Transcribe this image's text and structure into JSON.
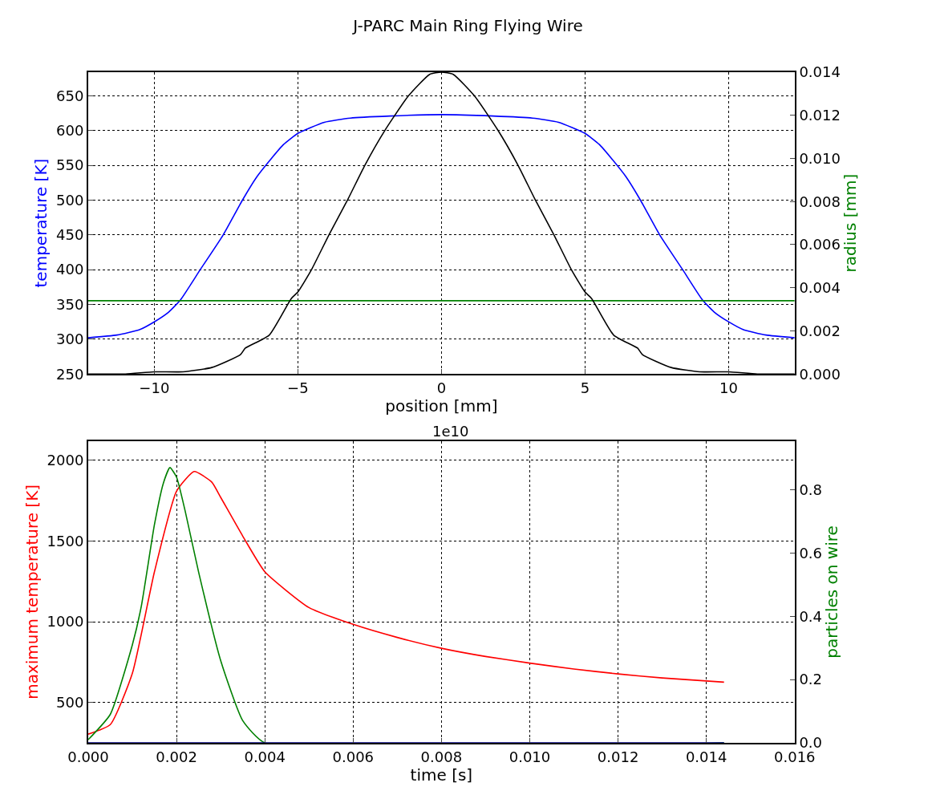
{
  "chart_data": [
    {
      "type": "line",
      "title": "J-PARC Main Ring Flying Wire",
      "xlabel": "position [mm]",
      "ylabel": "temperature [K]",
      "y2label": "radius [mm]",
      "xlim": [
        -12.3,
        12.3
      ],
      "xticks": [
        {
          "value": -10,
          "label": "−10"
        },
        {
          "value": -5,
          "label": "−5"
        },
        0,
        5,
        10
      ],
      "ylim": [
        250,
        684
      ],
      "yticks": [
        250,
        300,
        350,
        400,
        450,
        500,
        550,
        600,
        650
      ],
      "y2lim": [
        0,
        0.014
      ],
      "y2ticks": [
        {
          "value": 0,
          "label": "0.000"
        },
        {
          "value": 0.002,
          "label": "0.002"
        },
        {
          "value": 0.004,
          "label": "0.004"
        },
        {
          "value": 0.006,
          "label": "0.006"
        },
        {
          "value": 0.008,
          "label": "0.008"
        },
        {
          "value": 0.01,
          "label": "0.010"
        },
        {
          "value": 0.012,
          "label": "0.012"
        },
        {
          "value": 0.014,
          "label": "0.014"
        }
      ],
      "grid": true,
      "line_style": "solid",
      "marker": "none",
      "series": [
        {
          "color": "#0000ff",
          "x": [
            -12.3,
            -11.3,
            -10.5,
            -10,
            -9.5,
            -9.08,
            -8.4,
            -7.6,
            -6.93,
            -6.42,
            -5.92,
            -5.5,
            -5,
            -4.08,
            -3.17,
            -1.79,
            0,
            1.79,
            3.17,
            4.08,
            5,
            5.5,
            5.92,
            6.42,
            6.93,
            7.6,
            8.4,
            9.08,
            9.5,
            10,
            10.5,
            11.3,
            12.3
          ],
          "values": [
            302,
            306,
            314,
            325,
            339,
            357,
            400,
            450,
            500,
            534,
            560,
            580,
            596,
            612,
            618,
            621,
            623,
            621,
            618,
            612,
            596,
            580,
            560,
            534,
            500,
            450,
            400,
            357,
            339,
            325,
            314,
            306,
            302
          ]
        },
        {
          "color": "#008000",
          "axis": "y2",
          "x": [
            -12.3,
            12.3
          ],
          "values": [
            0.0034,
            0.0034
          ]
        },
        {
          "color": "#000000",
          "axis": "y2",
          "x": [
            -12.3,
            -11,
            -10,
            -9,
            -8,
            -7,
            -6.83,
            -6,
            -5.23,
            -5,
            -4.54,
            -3.9,
            -3.26,
            -2.66,
            -1.97,
            -1.15,
            -0.41,
            0,
            0.41,
            1.15,
            1.97,
            2.66,
            3.26,
            3.9,
            4.54,
            5,
            5.23,
            6,
            6.83,
            7,
            8,
            9,
            10,
            11,
            12.3
          ],
          "values": [
            0,
            0,
            0.0001,
            0.0001,
            0.0003,
            0.0009,
            0.0012,
            0.0018,
            0.0035,
            0.0038,
            0.0048,
            0.0065,
            0.0081,
            0.0097,
            0.0113,
            0.0129,
            0.0139,
            0.014,
            0.0139,
            0.0129,
            0.0113,
            0.0097,
            0.0081,
            0.0065,
            0.0048,
            0.0038,
            0.0035,
            0.0018,
            0.0012,
            0.0009,
            0.0003,
            0.0001,
            0.0001,
            0,
            0
          ]
        }
      ]
    },
    {
      "type": "line",
      "xlabel": "time [s]",
      "ylabel": "maximum temperature [K]",
      "y2label": "particles on wire",
      "annotations": [
        "1e10"
      ],
      "xlim": [
        0,
        0.016
      ],
      "xticks": [
        {
          "value": 0,
          "label": "0.000"
        },
        {
          "value": 0.002,
          "label": "0.002"
        },
        {
          "value": 0.004,
          "label": "0.004"
        },
        {
          "value": 0.006,
          "label": "0.006"
        },
        {
          "value": 0.008,
          "label": "0.008"
        },
        {
          "value": 0.01,
          "label": "0.010"
        },
        {
          "value": 0.012,
          "label": "0.012"
        },
        {
          "value": 0.014,
          "label": "0.014"
        },
        {
          "value": 0.016,
          "label": "0.016"
        }
      ],
      "ylim": [
        250,
        2120
      ],
      "yticks": [
        500,
        1000,
        1500,
        2000
      ],
      "y2lim": [
        0,
        0.954
      ],
      "y2ticks": [
        {
          "value": 0,
          "label": "0.0"
        },
        0.2,
        0.4,
        0.6,
        0.8
      ],
      "grid": true,
      "line_style": "solid",
      "marker": "none",
      "series": [
        {
          "color": "#ff0000",
          "x": [
            0,
            0.0005,
            0.001,
            0.0015,
            0.002,
            0.0024,
            0.0028,
            0.003,
            0.0035,
            0.004,
            0.005,
            0.006,
            0.007,
            0.008,
            0.009,
            0.01,
            0.011,
            0.012,
            0.013,
            0.0144
          ],
          "values": [
            304,
            363,
            681,
            1310,
            1809,
            1931,
            1865,
            1771,
            1531,
            1310,
            1088,
            984,
            903,
            836,
            785,
            744,
            707,
            677,
            652,
            626
          ]
        },
        {
          "color": "#008000",
          "axis": "y2",
          "x": [
            0,
            0.0005,
            0.001,
            0.0012,
            0.0015,
            0.0017,
            0.00185,
            0.002,
            0.0022,
            0.0025,
            0.003,
            0.0035,
            0.004,
            0.0144
          ],
          "values": [
            0.01,
            0.09,
            0.31,
            0.43,
            0.69,
            0.82,
            0.87,
            0.84,
            0.73,
            0.54,
            0.26,
            0.07,
            0.0,
            0.0
          ]
        },
        {
          "color": "#00008b",
          "axis": "y2",
          "x": [
            0,
            0.0144
          ],
          "values": [
            0,
            0
          ]
        }
      ]
    }
  ]
}
